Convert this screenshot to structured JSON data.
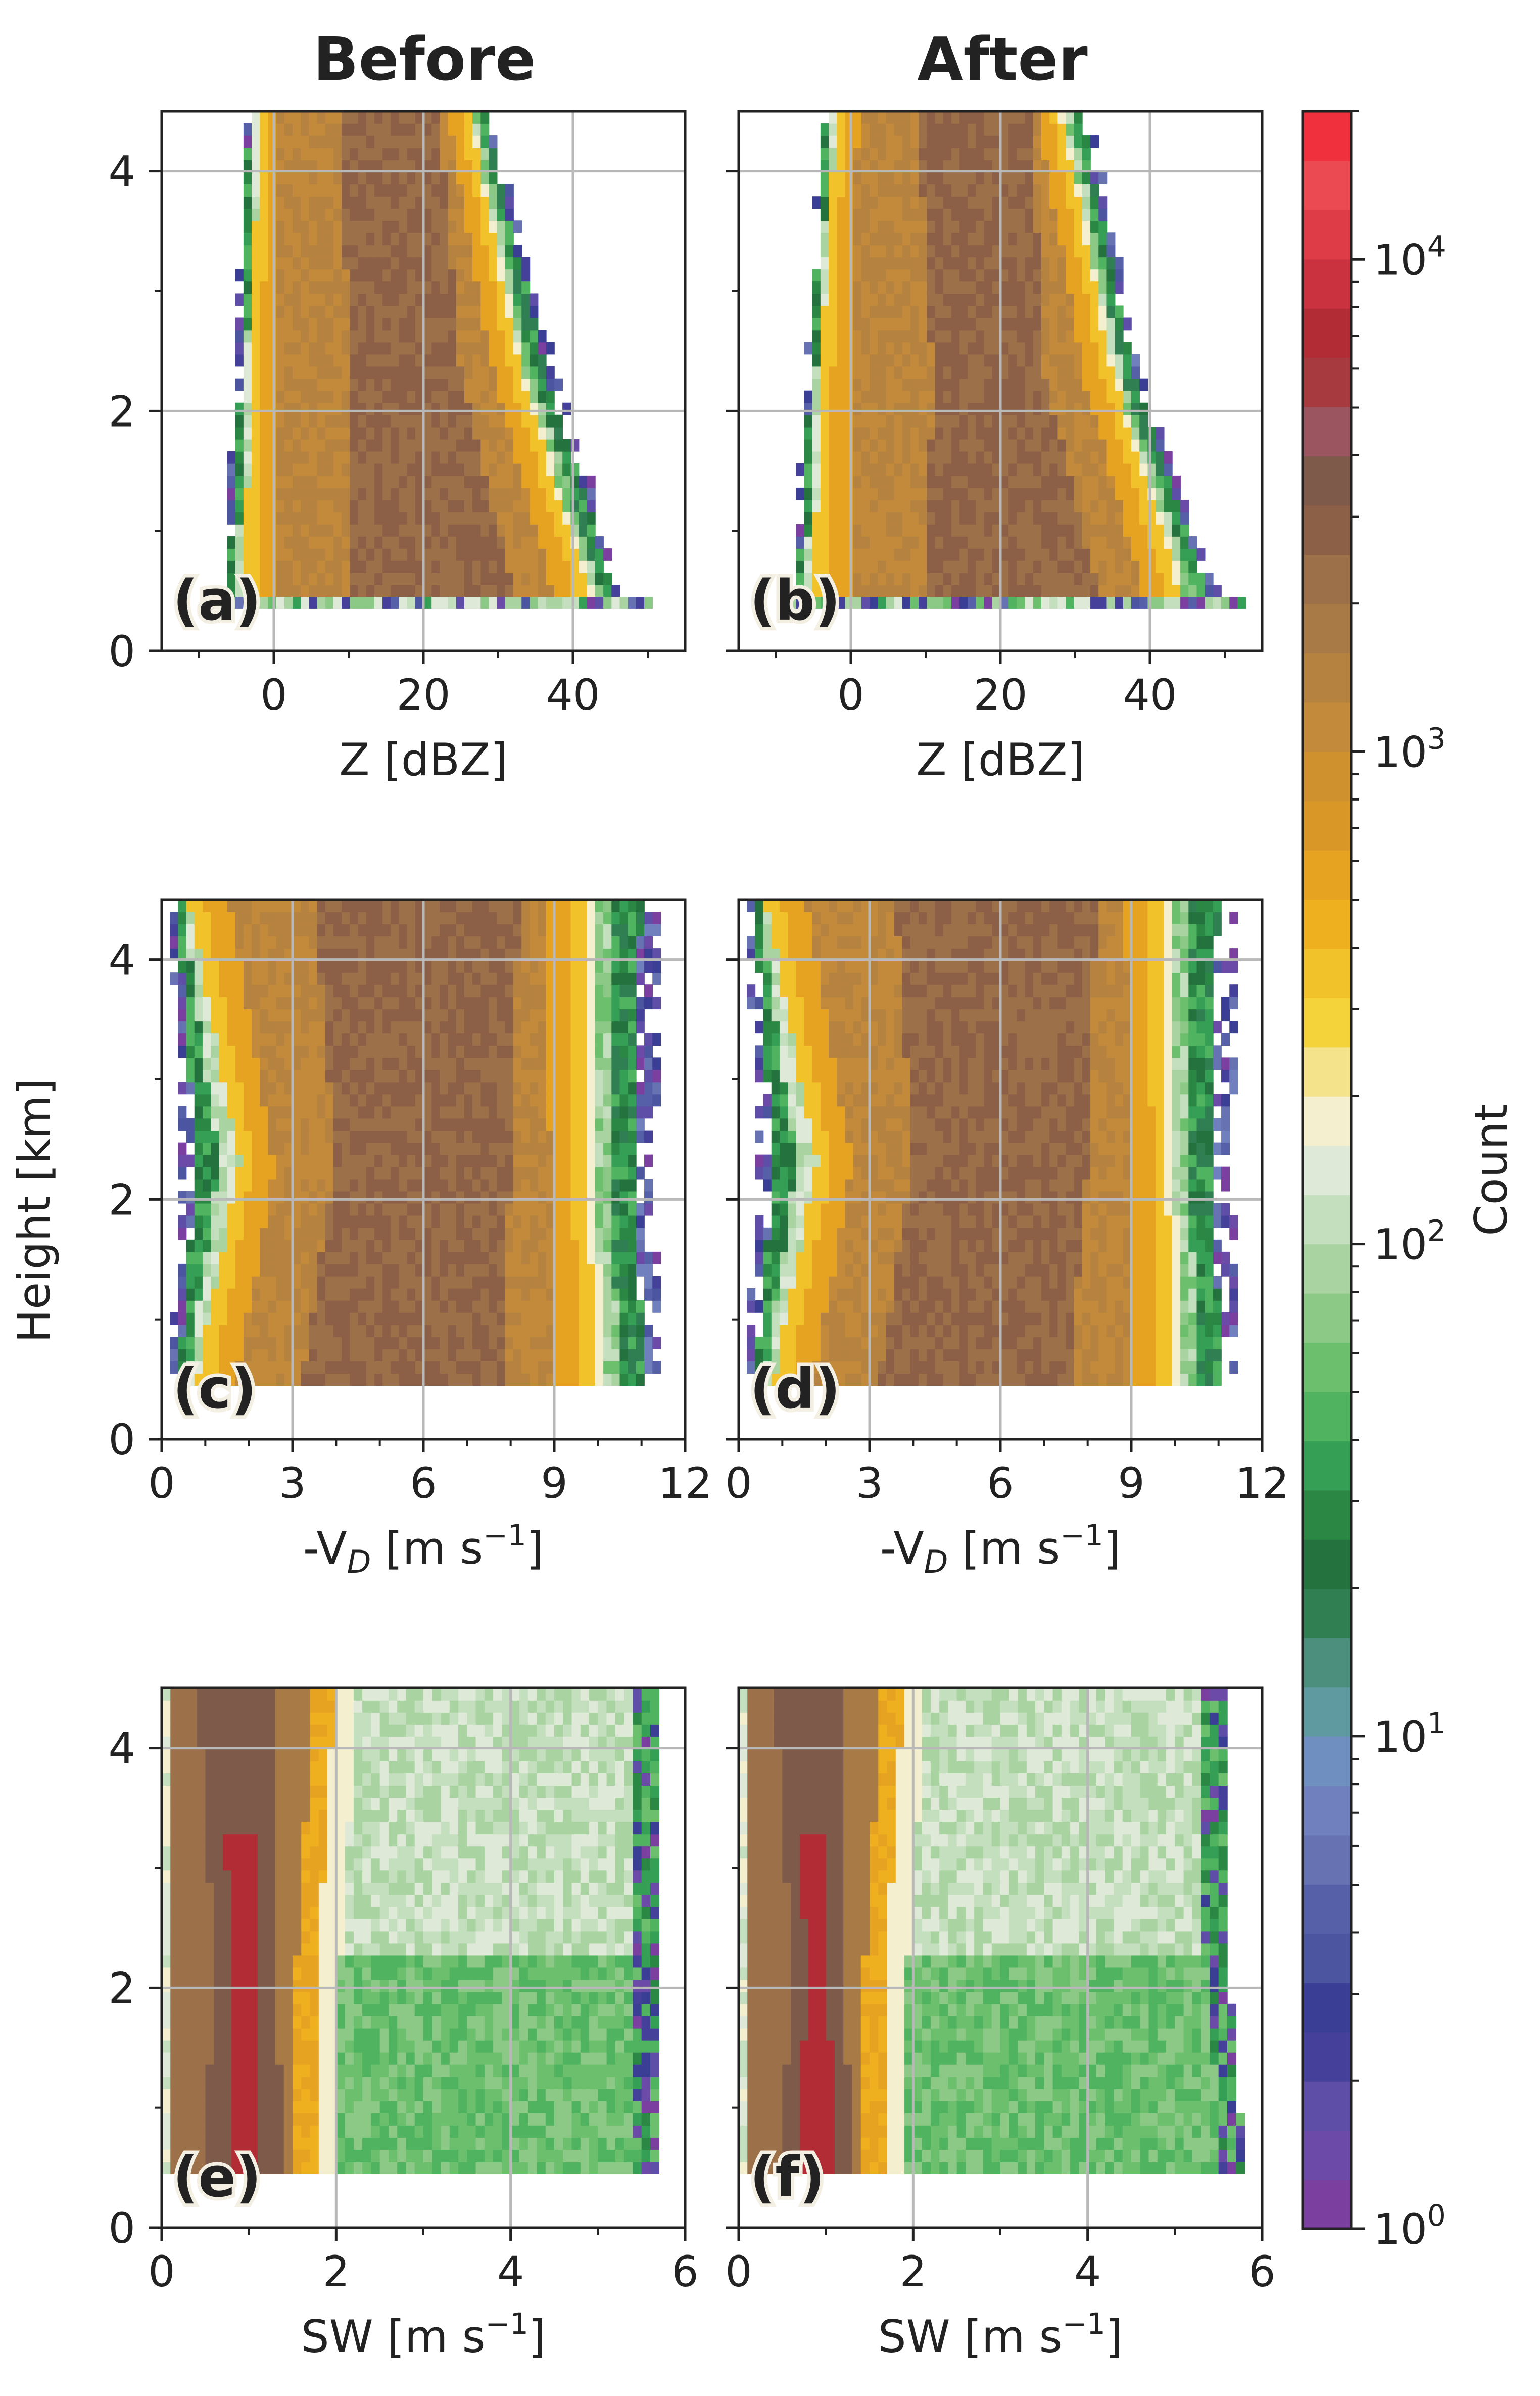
{
  "figure": {
    "column_titles": [
      "Before",
      "After"
    ],
    "shared_ylabel": "Height [km]",
    "colorbar": {
      "label": "Count",
      "scale": "log",
      "min": 1,
      "max": 20000,
      "ticks": [
        {
          "value": 1,
          "label": "10",
          "exp": "0"
        },
        {
          "value": 10,
          "label": "10",
          "exp": "1"
        },
        {
          "value": 100,
          "label": "10",
          "exp": "2"
        },
        {
          "value": 1000,
          "label": "10",
          "exp": "3"
        },
        {
          "value": 10000,
          "label": "10",
          "exp": "4"
        }
      ],
      "colors": [
        "#7b3fa0",
        "#6c4aa8",
        "#5e4ea8",
        "#45419a",
        "#3a3f95",
        "#4b55a0",
        "#5660a8",
        "#6672b2",
        "#7080be",
        "#6f8fc0",
        "#5f9aa0",
        "#4c8f7d",
        "#2f7f53",
        "#24733f",
        "#2a8744",
        "#35a055",
        "#4fb35f",
        "#6cbf6c",
        "#8cc986",
        "#a9d4a1",
        "#c3dfbe",
        "#dfe9d8",
        "#f4f0cf",
        "#f4e38b",
        "#f3d23a",
        "#f2c22a",
        "#efb01f",
        "#e6a322",
        "#d99728",
        "#cf902e",
        "#c28a3a",
        "#b6823f",
        "#a87a45",
        "#9c7049",
        "#8c6046",
        "#7e5a4a",
        "#9a5560",
        "#a63a3e",
        "#b22c36",
        "#c9323e",
        "#de3c46",
        "#ec4a52",
        "#f0303c"
      ]
    }
  },
  "chart_data": [
    {
      "type": "heatmap",
      "panel": "(a)",
      "column": "Before",
      "variable": "Z",
      "xlabel": "Z [dBZ]",
      "ylabel": "Height [km]",
      "xlim": [
        -15,
        55
      ],
      "ylim": [
        0,
        4.5
      ],
      "xticks": [
        0,
        20,
        40
      ],
      "yticks": [
        0,
        2,
        4
      ],
      "xminor": [
        -10,
        10,
        30,
        50
      ],
      "yminor": [
        1,
        3
      ],
      "grid": true,
      "envelope_x": [
        [
          -7,
          47
        ],
        [
          -5,
          38
        ],
        [
          -4,
          29
        ]
      ],
      "core_x": [
        [
          -4,
          42
        ],
        [
          -3,
          33
        ],
        [
          -2,
          26
        ]
      ],
      "mode_x": [
        [
          10,
          32
        ],
        [
          10,
          25
        ],
        [
          9,
          22
        ]
      ]
    },
    {
      "type": "heatmap",
      "panel": "(b)",
      "column": "After",
      "variable": "Z",
      "xlabel": "Z [dBZ]",
      "ylabel": "",
      "xlim": [
        -15,
        55
      ],
      "ylim": [
        0,
        4.5
      ],
      "xticks": [
        0,
        20,
        40
      ],
      "yticks": [
        0,
        2,
        4
      ],
      "xminor": [
        -10,
        10,
        30,
        50
      ],
      "yminor": [
        1,
        3
      ],
      "grid": true,
      "envelope_x": [
        [
          -8,
          49
        ],
        [
          -6,
          39
        ],
        [
          -4,
          32
        ]
      ],
      "core_x": [
        [
          -5,
          44
        ],
        [
          -4,
          35
        ],
        [
          -2,
          28
        ]
      ],
      "mode_x": [
        [
          10,
          33
        ],
        [
          11,
          26
        ],
        [
          9,
          24
        ]
      ]
    },
    {
      "type": "heatmap",
      "panel": "(c)",
      "column": "Before",
      "variable": "-V_D",
      "xlabel": "-V",
      "xlabel_sub": "D",
      "xlabel_unit": " [m s",
      "xlabel_exp": "−1",
      "xlabel_end": "]",
      "ylabel": "Height [km]",
      "xlim": [
        0,
        12
      ],
      "ylim": [
        0,
        4.5
      ],
      "xticks": [
        0,
        3,
        6,
        9,
        12
      ],
      "yticks": [
        0,
        2,
        4
      ],
      "xminor": [
        1,
        2,
        4,
        5,
        7,
        8,
        10,
        11
      ],
      "yminor": [
        1,
        3
      ],
      "grid": true,
      "envelope_x": [
        [
          0.2,
          11.5
        ],
        [
          0.4,
          11.3
        ],
        [
          0.2,
          11.5
        ]
      ],
      "core_x": [
        [
          0.8,
          10.0
        ],
        [
          1.8,
          9.7
        ],
        [
          0.6,
          9.8
        ]
      ],
      "mode_x": [
        [
          3.2,
          7.8
        ],
        [
          4.0,
          8.0
        ],
        [
          3.5,
          8.2
        ]
      ]
    },
    {
      "type": "heatmap",
      "panel": "(d)",
      "column": "After",
      "variable": "-V_D",
      "xlabel": "-V",
      "xlabel_sub": "D",
      "xlabel_unit": " [m s",
      "xlabel_exp": "−1",
      "xlabel_end": "]",
      "ylabel": "",
      "xlim": [
        0,
        12
      ],
      "ylim": [
        0,
        4.5
      ],
      "xticks": [
        0,
        3,
        6,
        9,
        12
      ],
      "yticks": [
        0,
        2,
        4
      ],
      "xminor": [
        1,
        2,
        4,
        5,
        7,
        8,
        10,
        11
      ],
      "yminor": [
        1,
        3
      ],
      "grid": true,
      "envelope_x": [
        [
          0.2,
          11.5
        ],
        [
          0.4,
          11.3
        ],
        [
          0.2,
          11.5
        ]
      ],
      "core_x": [
        [
          0.8,
          10.0
        ],
        [
          1.8,
          9.8
        ],
        [
          0.6,
          9.8
        ]
      ],
      "mode_x": [
        [
          3.2,
          7.6
        ],
        [
          4.0,
          8.0
        ],
        [
          3.6,
          8.2
        ]
      ]
    },
    {
      "type": "heatmap",
      "panel": "(e)",
      "column": "Before",
      "variable": "SW",
      "xlabel": "SW",
      "xlabel_unit": " [m s",
      "xlabel_exp": "−1",
      "xlabel_end": "]",
      "ylabel": "Height [km]",
      "xlim": [
        0,
        6
      ],
      "ylim": [
        0,
        4.5
      ],
      "xticks": [
        0,
        2,
        4,
        6
      ],
      "yticks": [
        0,
        2,
        4
      ],
      "xminor": [
        1,
        3,
        5
      ],
      "yminor": [
        1,
        3
      ],
      "grid": true,
      "envelope_x": [
        [
          0.0,
          5.7
        ],
        [
          0.0,
          5.7
        ],
        [
          0.0,
          5.7
        ]
      ],
      "core_x": [
        [
          0.0,
          1.8
        ],
        [
          0.0,
          1.8
        ],
        [
          0.0,
          2.0
        ]
      ],
      "mode_x": [
        [
          0.5,
          1.4
        ],
        [
          0.6,
          1.3
        ],
        [
          0.4,
          1.3
        ]
      ]
    },
    {
      "type": "heatmap",
      "panel": "(f)",
      "column": "After",
      "variable": "SW",
      "xlabel": "SW",
      "xlabel_unit": " [m s",
      "xlabel_exp": "−1",
      "xlabel_end": "]",
      "ylabel": "",
      "xlim": [
        0,
        6
      ],
      "ylim": [
        0,
        4.5
      ],
      "xticks": [
        0,
        2,
        4,
        6
      ],
      "yticks": [
        0,
        2,
        4
      ],
      "xminor": [
        1,
        3,
        5
      ],
      "yminor": [
        1,
        3
      ],
      "grid": true,
      "envelope_x": [
        [
          0.0,
          5.8
        ],
        [
          0.0,
          5.6
        ],
        [
          0.0,
          5.6
        ]
      ],
      "core_x": [
        [
          0.0,
          1.7
        ],
        [
          0.0,
          1.7
        ],
        [
          0.0,
          1.9
        ]
      ],
      "mode_x": [
        [
          0.5,
          1.3
        ],
        [
          0.6,
          1.2
        ],
        [
          0.4,
          1.2
        ]
      ]
    }
  ]
}
